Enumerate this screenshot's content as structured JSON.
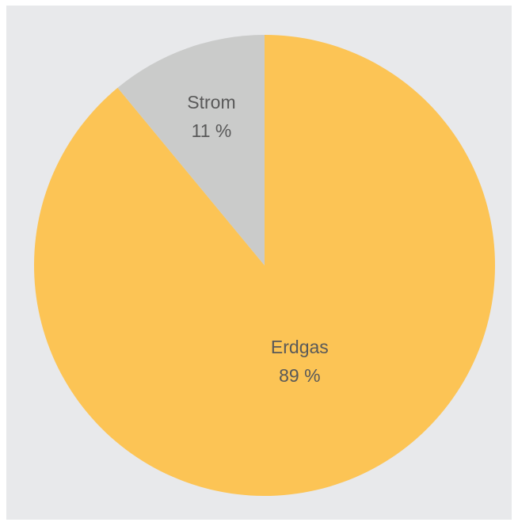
{
  "chart_data": {
    "type": "pie",
    "slices": [
      {
        "label": "Erdgas",
        "value": 89,
        "value_label": "89 %",
        "color": "#fcc455"
      },
      {
        "label": "Strom",
        "value": 11,
        "value_label": "11 %",
        "color": "#cacbca"
      }
    ],
    "start_angle_deg": 0,
    "direction": "clockwise",
    "background_color": "#e8e9eb",
    "label_color": "#595959",
    "legend": "none"
  }
}
